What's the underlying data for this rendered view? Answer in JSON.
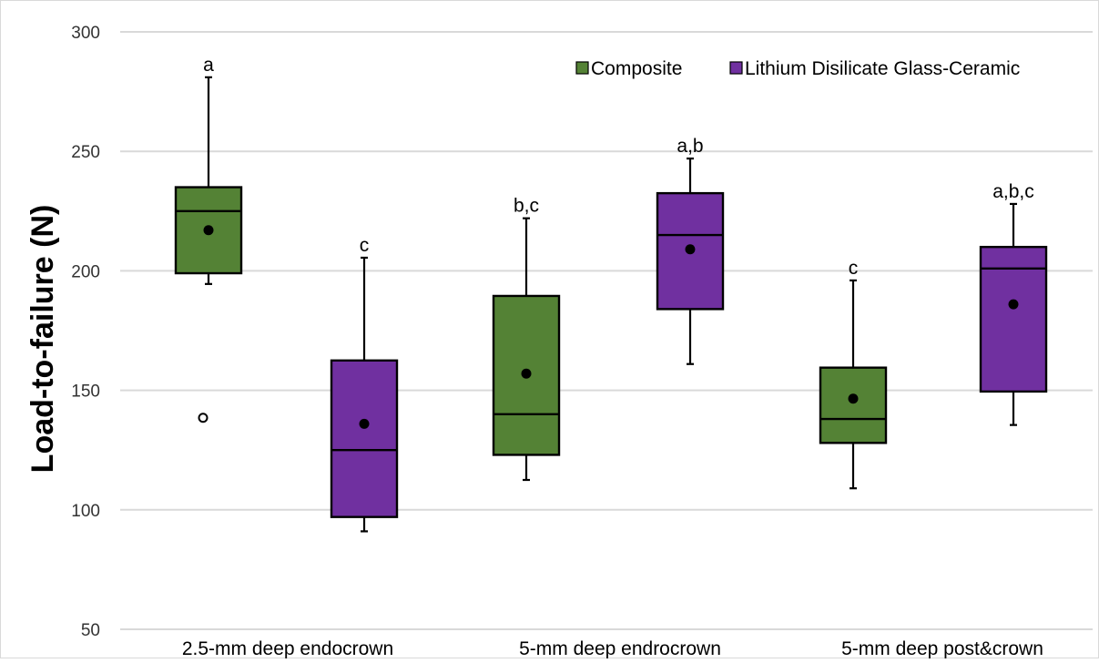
{
  "chart_data": {
    "type": "boxplot",
    "title": "",
    "ylabel": "Load-to-failure (N)",
    "xlabel": "",
    "ylim": [
      50,
      300
    ],
    "yticks": [
      50,
      100,
      150,
      200,
      250,
      300
    ],
    "grid": true,
    "legend_position": "top-right",
    "categories": [
      "2.5-mm deep endocrown",
      "5-mm deep endrocrown",
      "5-mm deep post&crown"
    ],
    "series": [
      {
        "name": "Composite",
        "color": "#548235"
      },
      {
        "name": "Lithium Disilicate Glass-Ceramic",
        "color": "#7030A0"
      }
    ],
    "boxes": [
      {
        "category": 0,
        "series": 0,
        "min": 194.5,
        "q1": 199,
        "median": 225,
        "q3": 235,
        "max": 281,
        "mean": 217,
        "outliers": [
          138.5
        ],
        "label": "a"
      },
      {
        "category": 0,
        "series": 1,
        "min": 91,
        "q1": 97,
        "median": 125,
        "q3": 162.5,
        "max": 205.5,
        "mean": 136,
        "outliers": [],
        "label": "c"
      },
      {
        "category": 1,
        "series": 0,
        "min": 112.5,
        "q1": 123,
        "median": 140,
        "q3": 189.5,
        "max": 222,
        "mean": 157,
        "outliers": [],
        "label": "b,c"
      },
      {
        "category": 1,
        "series": 1,
        "min": 161,
        "q1": 184,
        "median": 215,
        "q3": 232.5,
        "max": 247,
        "mean": 209,
        "outliers": [],
        "label": "a,b"
      },
      {
        "category": 2,
        "series": 0,
        "min": 109,
        "q1": 128,
        "median": 138,
        "q3": 159.5,
        "max": 196,
        "mean": 146.5,
        "outliers": [],
        "label": "c"
      },
      {
        "category": 2,
        "series": 1,
        "min": 135.5,
        "q1": 149.5,
        "median": 201,
        "q3": 210,
        "max": 228,
        "mean": 186,
        "outliers": [],
        "label": "a,b,c"
      }
    ]
  }
}
